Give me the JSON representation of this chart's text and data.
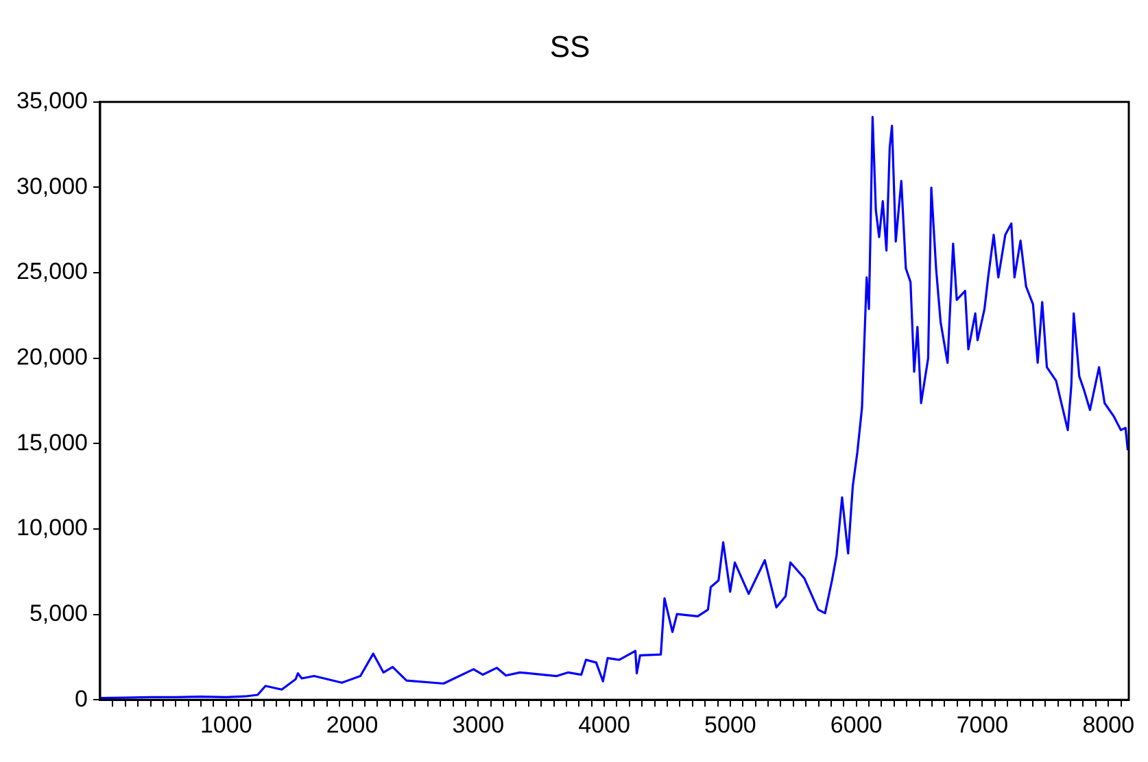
{
  "chart_data": {
    "type": "line",
    "title": "SS",
    "x": [
      1,
      200,
      400,
      600,
      800,
      1000,
      1150,
      1250,
      1312,
      1441,
      1551,
      1569,
      1600,
      1698,
      1918,
      2065,
      2167,
      2248,
      2321,
      2431,
      2725,
      2963,
      3037,
      3147,
      3220,
      3330,
      3623,
      3715,
      3818,
      3855,
      3936,
      3990,
      4027,
      4119,
      4247,
      4258,
      4284,
      4449,
      4478,
      4541,
      4577,
      4742,
      4823,
      4845,
      4907,
      4944,
      4999,
      5036,
      5146,
      5274,
      5366,
      5439,
      5477,
      5587,
      5697,
      5752,
      5807,
      5843,
      5887,
      5935,
      5972,
      6008,
      6045,
      6082,
      6100,
      6111,
      6129,
      6155,
      6181,
      6210,
      6239,
      6265,
      6283,
      6313,
      6357,
      6393,
      6430,
      6459,
      6485,
      6514,
      6570,
      6595,
      6633,
      6669,
      6724,
      6768,
      6797,
      6863,
      6889,
      6944,
      6962,
      7017,
      7046,
      7090,
      7127,
      7182,
      7230,
      7255,
      7303,
      7347,
      7402,
      7439,
      7475,
      7512,
      7585,
      7678,
      7706,
      7725,
      7769,
      7806,
      7854,
      7926,
      7970,
      8044,
      8099,
      8136,
      8154
    ],
    "series": [
      {
        "color": "#0000ff",
        "values": [
          100,
          120,
          150,
          150,
          180,
          150,
          200,
          290,
          810,
          600,
          1200,
          1550,
          1250,
          1390,
          1000,
          1390,
          2700,
          1600,
          1920,
          1130,
          950,
          1790,
          1470,
          1870,
          1420,
          1600,
          1390,
          1600,
          1470,
          2340,
          2180,
          1080,
          2440,
          2340,
          2860,
          1550,
          2600,
          2650,
          5940,
          3970,
          5020,
          4890,
          5280,
          6600,
          6990,
          9220,
          6330,
          8040,
          6200,
          8170,
          5410,
          6070,
          8040,
          7120,
          5280,
          5070,
          6990,
          8430,
          11850,
          8570,
          12510,
          14480,
          17100,
          24730,
          22880,
          26830,
          34130,
          28670,
          27090,
          29190,
          26300,
          32340,
          33600,
          26830,
          30370,
          25250,
          24460,
          19210,
          21830,
          17370,
          20000,
          29980,
          25250,
          22100,
          19730,
          26700,
          23410,
          23940,
          20520,
          22620,
          21050,
          22880,
          24730,
          27220,
          24730,
          27220,
          27880,
          24730,
          26880,
          24200,
          23150,
          19730,
          23280,
          19470,
          18680,
          15790,
          18420,
          22620,
          18940,
          18150,
          16970,
          19470,
          17370,
          16580,
          15790,
          15920,
          14610
        ]
      }
    ],
    "xlim": [
      0,
      8162
    ],
    "xticks": [
      {
        "value": 100,
        "label": null
      },
      {
        "value": 200,
        "label": null
      },
      {
        "value": 300,
        "label": null
      },
      {
        "value": 400,
        "label": null
      },
      {
        "value": 500,
        "label": null
      },
      {
        "value": 600,
        "label": null
      },
      {
        "value": 700,
        "label": null
      },
      {
        "value": 800,
        "label": null
      },
      {
        "value": 900,
        "label": null
      },
      1000,
      {
        "value": 1100,
        "label": null
      },
      {
        "value": 1200,
        "label": null
      },
      {
        "value": 1300,
        "label": null
      },
      {
        "value": 1400,
        "label": null
      },
      {
        "value": 1500,
        "label": null
      },
      {
        "value": 1600,
        "label": null
      },
      {
        "value": 1700,
        "label": null
      },
      {
        "value": 1800,
        "label": null
      },
      {
        "value": 1900,
        "label": null
      },
      2000,
      {
        "value": 2100,
        "label": null
      },
      {
        "value": 2200,
        "label": null
      },
      {
        "value": 2300,
        "label": null
      },
      {
        "value": 2400,
        "label": null
      },
      {
        "value": 2500,
        "label": null
      },
      {
        "value": 2600,
        "label": null
      },
      {
        "value": 2700,
        "label": null
      },
      {
        "value": 2800,
        "label": null
      },
      {
        "value": 2900,
        "label": null
      },
      3000,
      {
        "value": 3100,
        "label": null
      },
      {
        "value": 3200,
        "label": null
      },
      {
        "value": 3300,
        "label": null
      },
      {
        "value": 3400,
        "label": null
      },
      {
        "value": 3500,
        "label": null
      },
      {
        "value": 3600,
        "label": null
      },
      {
        "value": 3700,
        "label": null
      },
      {
        "value": 3800,
        "label": null
      },
      {
        "value": 3900,
        "label": null
      },
      4000,
      {
        "value": 4100,
        "label": null
      },
      {
        "value": 4200,
        "label": null
      },
      {
        "value": 4300,
        "label": null
      },
      {
        "value": 4400,
        "label": null
      },
      {
        "value": 4500,
        "label": null
      },
      {
        "value": 4600,
        "label": null
      },
      {
        "value": 4700,
        "label": null
      },
      {
        "value": 4800,
        "label": null
      },
      {
        "value": 4900,
        "label": null
      },
      5000,
      {
        "value": 5100,
        "label": null
      },
      {
        "value": 5200,
        "label": null
      },
      {
        "value": 5300,
        "label": null
      },
      {
        "value": 5400,
        "label": null
      },
      {
        "value": 5500,
        "label": null
      },
      {
        "value": 5600,
        "label": null
      },
      {
        "value": 5700,
        "label": null
      },
      {
        "value": 5800,
        "label": null
      },
      {
        "value": 5900,
        "label": null
      },
      6000,
      {
        "value": 6100,
        "label": null
      },
      {
        "value": 6200,
        "label": null
      },
      {
        "value": 6300,
        "label": null
      },
      {
        "value": 6400,
        "label": null
      },
      {
        "value": 6500,
        "label": null
      },
      {
        "value": 6600,
        "label": null
      },
      {
        "value": 6700,
        "label": null
      },
      {
        "value": 6800,
        "label": null
      },
      {
        "value": 6900,
        "label": null
      },
      7000,
      {
        "value": 7100,
        "label": null
      },
      {
        "value": 7200,
        "label": null
      },
      {
        "value": 7300,
        "label": null
      },
      {
        "value": 7400,
        "label": null
      },
      {
        "value": 7500,
        "label": null
      },
      {
        "value": 7600,
        "label": null
      },
      {
        "value": 7700,
        "label": null
      },
      {
        "value": 7800,
        "label": null
      },
      {
        "value": 7900,
        "label": null
      },
      8000,
      {
        "value": 8100,
        "label": null
      }
    ],
    "ylim": [
      0,
      35000
    ],
    "yticks": [
      0,
      {
        "value": 5000,
        "label": "5,000"
      },
      {
        "value": 10000,
        "label": "10,000"
      },
      {
        "value": 15000,
        "label": "15,000"
      },
      {
        "value": 20000,
        "label": "20,000"
      },
      {
        "value": 25000,
        "label": "25,000"
      },
      {
        "value": 30000,
        "label": "30,000"
      },
      {
        "value": 35000,
        "label": "35,000"
      }
    ],
    "grid": false,
    "legend": false,
    "marker": "none",
    "line_style": "solid"
  }
}
